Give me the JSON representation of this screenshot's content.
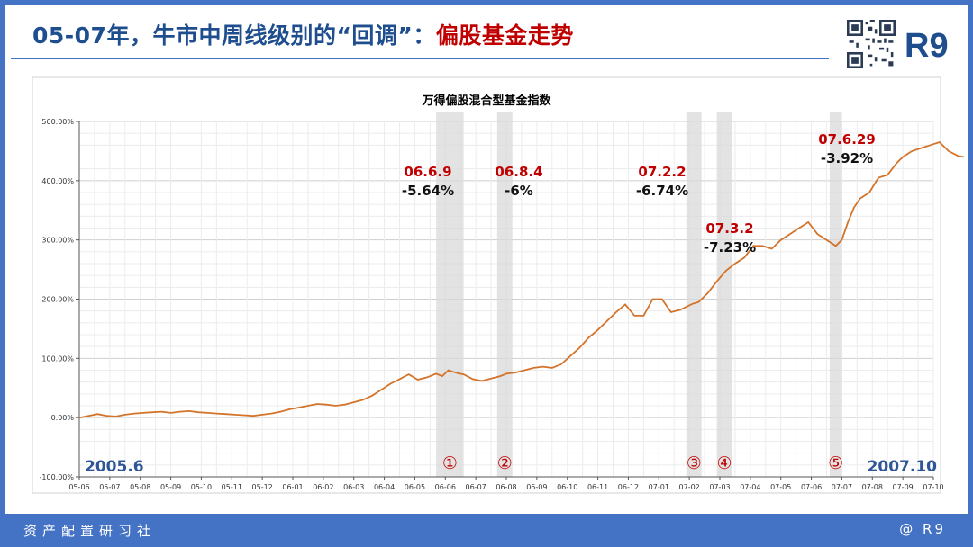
{
  "header": {
    "title_main": "05-07年，牛市中周线级别的“回调”：",
    "title_accent": "偏股基金走势",
    "logo": "R9"
  },
  "footer": {
    "left": "资产配置研习社",
    "right": "@ R9"
  },
  "chart_data": {
    "type": "line",
    "title": "万得偏股混合型基金指数",
    "y_ticks": [
      "500.00%",
      "400.00%",
      "300.00%",
      "200.00%",
      "100.00%",
      "0.00%",
      "-100.00%"
    ],
    "ylim": [
      -100,
      500
    ],
    "x_ticks": [
      "05-06",
      "05-07",
      "05-08",
      "05-09",
      "05-10",
      "05-11",
      "05-12",
      "06-01",
      "06-02",
      "06-03",
      "06-04",
      "06-05",
      "06-06",
      "06-07",
      "06-08",
      "06-09",
      "06-10",
      "06-11",
      "06-12",
      "07-01",
      "07-02",
      "07-03",
      "07-04",
      "07-05",
      "07-06",
      "07-07",
      "07-08",
      "07-09",
      "07-10"
    ],
    "start_label": "2005.6",
    "end_label": "2007.10",
    "line_color": "#d4732a",
    "band_color": "#d9d9d9",
    "series": [
      {
        "x": [
          0,
          0.3,
          0.6,
          0.9,
          1.2,
          1.5,
          1.8,
          2.1,
          2.4,
          2.7,
          3.0,
          3.3,
          3.6,
          3.9,
          4.2,
          4.5,
          4.8,
          5.1,
          5.4,
          5.7,
          6.0,
          6.3,
          6.6,
          6.9,
          7.2,
          7.5,
          7.8,
          8.1,
          8.4,
          8.7,
          9.0,
          9.3,
          9.6,
          9.9,
          10.2,
          10.5,
          10.8,
          11.1,
          11.4,
          11.7,
          11.9,
          12.1,
          12.4,
          12.6,
          12.9,
          13.2,
          13.5,
          13.8,
          14.0,
          14.3,
          14.6,
          14.9,
          15.2,
          15.5,
          15.8,
          16.1,
          16.4,
          16.7,
          17.0,
          17.3,
          17.6,
          17.9,
          18.2,
          18.5,
          18.8,
          19.1,
          19.4,
          19.7,
          19.9,
          20.1,
          20.3,
          20.6,
          20.9,
          21.2,
          21.5,
          21.8,
          22.1,
          22.4,
          22.7,
          23.0,
          23.3,
          23.6,
          23.9,
          24.2,
          24.5,
          24.8,
          25.0,
          25.2,
          25.4,
          25.6,
          25.9,
          26.2,
          26.5,
          26.8,
          27.0,
          27.3,
          27.6,
          27.9,
          28.2,
          28.5,
          28.8,
          29.0
        ],
        "y": [
          0,
          3,
          6,
          3,
          2,
          5,
          7,
          8,
          9,
          10,
          8,
          10,
          11,
          9,
          8,
          7,
          6,
          5,
          4,
          3,
          5,
          7,
          10,
          14,
          17,
          20,
          23,
          22,
          20,
          22,
          26,
          30,
          37,
          47,
          57,
          65,
          73,
          64,
          68,
          74,
          70,
          80,
          75,
          73,
          65,
          62,
          66,
          70,
          74,
          76,
          80,
          84,
          86,
          84,
          90,
          104,
          118,
          135,
          148,
          163,
          178,
          191,
          172,
          172,
          200,
          200,
          178,
          182,
          187,
          192,
          195,
          210,
          230,
          248,
          260,
          270,
          290,
          290,
          285,
          300,
          310,
          320,
          330,
          310,
          300,
          290,
          300,
          330,
          355,
          370,
          380,
          405,
          410,
          430,
          440,
          450,
          455,
          460,
          465,
          450,
          442,
          440
        ]
      }
    ],
    "pullbacks": [
      {
        "num": "①",
        "date": "06.6.9",
        "pct": "-5.64%",
        "x_start": 11.7,
        "x_end": 12.6
      },
      {
        "num": "②",
        "date": "06.8.4",
        "pct": "-6%",
        "x_start": 13.7,
        "x_end": 14.2
      },
      {
        "num": "③",
        "date": "07.2.2",
        "pct": "-6.74%",
        "x_start": 19.9,
        "x_end": 20.4
      },
      {
        "num": "④",
        "date": "07.3.2",
        "pct": "-7.23%",
        "x_start": 20.9,
        "x_end": 21.4
      },
      {
        "num": "⑤",
        "date": "07.6.29",
        "pct": "-3.92%",
        "x_start": 24.6,
        "x_end": 25.0
      }
    ]
  }
}
